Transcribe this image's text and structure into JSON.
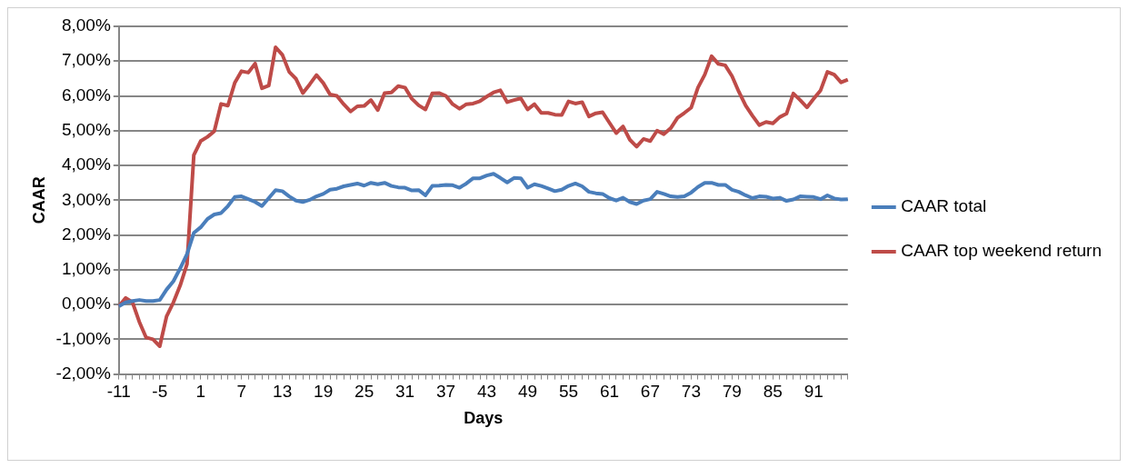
{
  "chart_data": {
    "type": "line",
    "xlabel": "Days",
    "ylabel": "CAAR",
    "categories": [
      "-11",
      null,
      null,
      null,
      null,
      null,
      "-5",
      null,
      null,
      null,
      null,
      null,
      "1",
      null,
      null,
      null,
      null,
      null,
      "7",
      null,
      null,
      null,
      null,
      null,
      "13",
      null,
      null,
      null,
      null,
      null,
      "19",
      null,
      null,
      null,
      null,
      null,
      "25",
      null,
      null,
      null,
      null,
      null,
      "31",
      null,
      null,
      null,
      null,
      null,
      "37",
      null,
      null,
      null,
      null,
      null,
      "43",
      null,
      null,
      null,
      null,
      null,
      "49",
      null,
      null,
      null,
      null,
      null,
      "55",
      null,
      null,
      null,
      null,
      null,
      "61",
      null,
      null,
      null,
      null,
      null,
      "67",
      null,
      null,
      null,
      null,
      null,
      "73",
      null,
      null,
      null,
      null,
      null,
      "79",
      null,
      null,
      null,
      null,
      null,
      "85",
      null,
      null,
      null,
      null,
      null,
      "91",
      null,
      null,
      null,
      null,
      null
    ],
    "series": [
      {
        "name": "CAAR total",
        "color": "#4a7ebb",
        "values": [
          -0.05,
          0.06,
          0.1,
          0.13,
          0.1,
          0.1,
          0.13,
          0.43,
          0.67,
          1.04,
          1.45,
          2.06,
          2.22,
          2.46,
          2.59,
          2.63,
          2.83,
          3.09,
          3.11,
          3.03,
          2.95,
          2.83,
          3.06,
          3.29,
          3.26,
          3.11,
          2.99,
          2.95,
          3.01,
          3.11,
          3.18,
          3.3,
          3.33,
          3.4,
          3.44,
          3.48,
          3.42,
          3.5,
          3.46,
          3.5,
          3.41,
          3.37,
          3.36,
          3.28,
          3.29,
          3.14,
          3.41,
          3.42,
          3.44,
          3.43,
          3.36,
          3.48,
          3.63,
          3.63,
          3.71,
          3.76,
          3.64,
          3.51,
          3.64,
          3.63,
          3.36,
          3.46,
          3.41,
          3.34,
          3.26,
          3.3,
          3.41,
          3.48,
          3.4,
          3.24,
          3.2,
          3.18,
          3.06,
          2.99,
          3.07,
          2.95,
          2.89,
          2.99,
          3.03,
          3.24,
          3.18,
          3.11,
          3.09,
          3.11,
          3.22,
          3.38,
          3.5,
          3.5,
          3.44,
          3.44,
          3.3,
          3.24,
          3.14,
          3.06,
          3.11,
          3.1,
          3.05,
          3.07,
          2.98,
          3.02,
          3.11,
          3.1,
          3.09,
          3.03,
          3.14,
          3.05,
          3.02,
          3.03
        ]
      },
      {
        "name": "CAAR top weekend return",
        "color": "#be4b48",
        "values": [
          -0.05,
          0.19,
          0.06,
          -0.5,
          -0.95,
          -1.0,
          -1.2,
          -0.34,
          0.06,
          0.55,
          1.16,
          4.3,
          4.7,
          4.82,
          4.98,
          5.77,
          5.72,
          6.37,
          6.71,
          6.67,
          6.93,
          6.22,
          6.3,
          7.4,
          7.18,
          6.69,
          6.49,
          6.08,
          6.33,
          6.6,
          6.37,
          6.04,
          6.0,
          5.76,
          5.55,
          5.7,
          5.71,
          5.88,
          5.59,
          6.08,
          6.1,
          6.28,
          6.24,
          5.92,
          5.73,
          5.61,
          6.07,
          6.08,
          6.0,
          5.76,
          5.63,
          5.76,
          5.78,
          5.85,
          5.98,
          6.1,
          6.16,
          5.82,
          5.88,
          5.93,
          5.61,
          5.76,
          5.51,
          5.51,
          5.46,
          5.45,
          5.84,
          5.78,
          5.82,
          5.41,
          5.5,
          5.53,
          5.23,
          4.93,
          5.12,
          4.74,
          4.54,
          4.76,
          4.7,
          5.0,
          4.9,
          5.07,
          5.37,
          5.51,
          5.66,
          6.24,
          6.61,
          7.14,
          6.92,
          6.88,
          6.57,
          6.12,
          5.72,
          5.43,
          5.16,
          5.25,
          5.21,
          5.39,
          5.49,
          6.07,
          5.88,
          5.67,
          5.92,
          6.16,
          6.69,
          6.61,
          6.39,
          6.47
        ]
      }
    ],
    "ylim": [
      -2,
      8
    ],
    "yticks": [
      {
        "value": -2,
        "label": "-2,00%"
      },
      {
        "value": -1,
        "label": "-1,00%"
      },
      {
        "value": 0,
        "label": "0,00%"
      },
      {
        "value": 1,
        "label": "1,00%"
      },
      {
        "value": 2,
        "label": "2,00%"
      },
      {
        "value": 3,
        "label": "3,00%"
      },
      {
        "value": 4,
        "label": "4,00%"
      },
      {
        "value": 5,
        "label": "5,00%"
      },
      {
        "value": 6,
        "label": "6,00%"
      },
      {
        "value": 7,
        "label": "7,00%"
      },
      {
        "value": 8,
        "label": "8,00%"
      }
    ],
    "grid": "y",
    "legend": "right",
    "marker": "none",
    "line_style": "solid"
  }
}
